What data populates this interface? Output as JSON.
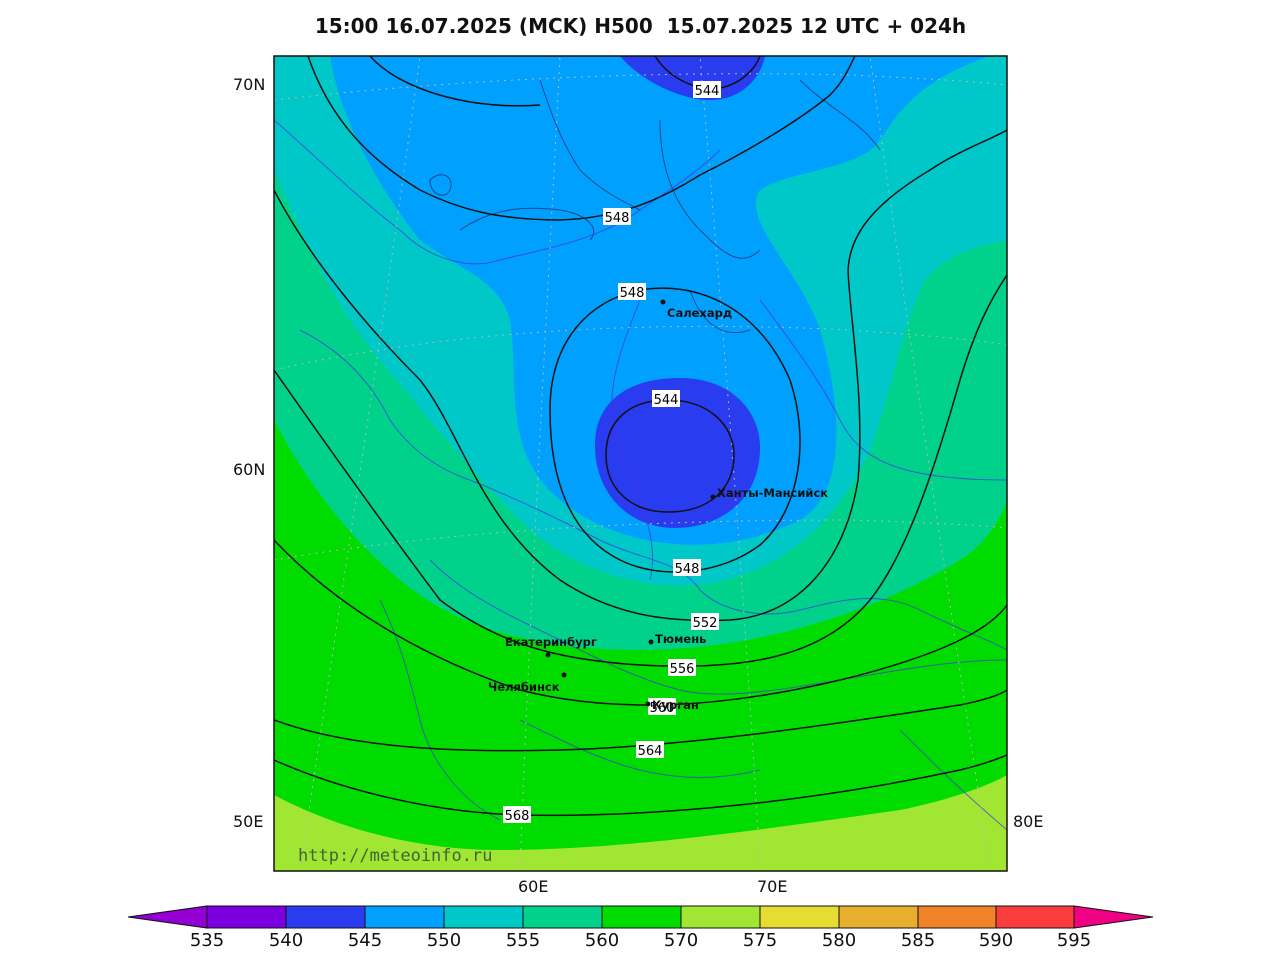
{
  "title": "15:00 16.07.2025 (MCK) H500  15.07.2025 12 UTC + 024h",
  "axes": {
    "lat_labels": [
      "70N",
      "60N",
      "50E"
    ],
    "lon_labels": [
      "60E",
      "70E",
      "80E"
    ]
  },
  "watermark": "http://meteoinfo.ru",
  "cities": [
    {
      "name": "Салехард"
    },
    {
      "name": "Ханты-Мансийск"
    },
    {
      "name": "Екатеринбург"
    },
    {
      "name": "Тюмень"
    },
    {
      "name": "Челябинск"
    },
    {
      "name": "Курган"
    }
  ],
  "contour_labels": [
    "544",
    "548",
    "548",
    "544",
    "548",
    "552",
    "556",
    "560",
    "564",
    "568"
  ],
  "colorbar": {
    "labels": [
      "535",
      "540",
      "545",
      "550",
      "555",
      "560",
      "570",
      "575",
      "580",
      "585",
      "590",
      "595"
    ],
    "colors": [
      "#9400d3",
      "#7b00e0",
      "#2a3cf0",
      "#00a0ff",
      "#00c8c8",
      "#00d28c",
      "#00dc00",
      "#a0e632",
      "#e6dc32",
      "#e6af2d",
      "#f08228",
      "#fa3c3c",
      "#f00082"
    ]
  },
  "field_colors": {
    "c545": "#2a3cf0",
    "c550": "#00a0ff",
    "c555": "#00c8c8",
    "c560": "#00d28c",
    "c570": "#00dc00",
    "c575": "#a0e632"
  }
}
